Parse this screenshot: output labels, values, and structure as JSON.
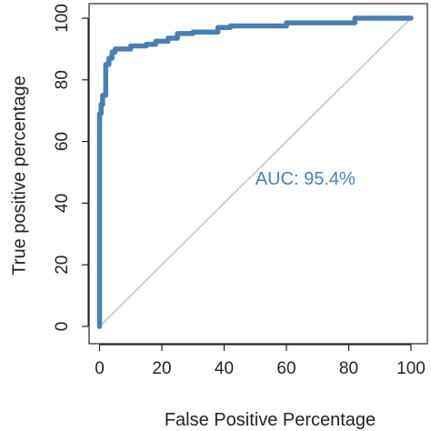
{
  "chart_data": {
    "type": "line",
    "xlabel": "False Positive Percentage",
    "ylabel": "True positive percentage",
    "xlim": [
      0,
      100
    ],
    "ylim": [
      0,
      100
    ],
    "x_ticks": [
      0,
      20,
      40,
      60,
      80,
      100
    ],
    "y_ticks": [
      0,
      20,
      40,
      60,
      80,
      100
    ],
    "x_tick_labels": [
      "0",
      "20",
      "40",
      "60",
      "80",
      "100"
    ],
    "y_tick_labels": [
      "0",
      "20",
      "40",
      "60",
      "80",
      "100"
    ],
    "grid": false,
    "annotation": {
      "text": "AUC: 95.4%",
      "x": 50,
      "y": 46,
      "color": "#4a7fb5"
    },
    "reference_line": {
      "x": [
        0,
        100
      ],
      "y": [
        0,
        100
      ],
      "color": "#aaaaaa"
    },
    "series": [
      {
        "color": "#4a7fb5",
        "x": [
          0,
          0,
          0.5,
          0.5,
          1,
          1,
          2,
          2,
          3,
          3,
          4,
          4,
          5,
          5,
          10,
          10,
          15,
          15,
          18,
          18,
          22,
          22,
          25,
          25,
          30,
          30,
          38,
          38,
          42,
          42,
          60,
          60,
          82,
          82,
          100
        ],
        "y": [
          0,
          69,
          69,
          72,
          72,
          75,
          75,
          85,
          85,
          87,
          87,
          89,
          89,
          90,
          90,
          91,
          91,
          91.5,
          91.5,
          92.5,
          92.5,
          93.5,
          93.5,
          95,
          95,
          95.5,
          95.5,
          97,
          97,
          97.5,
          97.5,
          98.5,
          98.5,
          100,
          100
        ]
      }
    ]
  }
}
